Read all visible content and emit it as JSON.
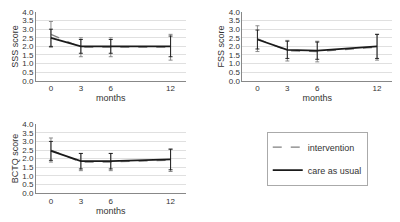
{
  "chart_data": [
    {
      "type": "line",
      "xlabel": "months",
      "ylabel": "SSS score",
      "x": [
        0,
        3,
        6,
        12
      ],
      "series": [
        {
          "name": "intervention",
          "color": "#808080",
          "line_style": "dashed",
          "values": [
            2.7,
            1.95,
            1.95,
            1.95
          ],
          "errors": [
            0.75,
            0.55,
            0.55,
            0.75
          ]
        },
        {
          "name": "care as usual",
          "color": "#1a1a1a",
          "line_style": "solid",
          "values": [
            2.5,
            2.0,
            2.0,
            2.0
          ],
          "errors": [
            0.5,
            0.4,
            0.4,
            0.6
          ]
        }
      ],
      "xlim": [
        -1.5,
        13.5
      ],
      "xticks": [
        0,
        3,
        6,
        12
      ],
      "ylim": [
        0.0,
        4.0
      ],
      "yticks": [
        {
          "value": 0.0,
          "label": "0.0"
        },
        0.5,
        {
          "value": 1.0,
          "label": "1.0"
        },
        1.5,
        {
          "value": 2.0,
          "label": "2.0"
        },
        2.5,
        {
          "value": 3.0,
          "label": "3.0"
        },
        3.5,
        {
          "value": 4.0,
          "label": "4.0"
        }
      ],
      "grid": "y",
      "legend": "lower right"
    },
    {
      "type": "line",
      "xlabel": "months",
      "ylabel": "FSS score",
      "x": [
        0,
        3,
        6,
        12
      ],
      "series": [
        {
          "name": "intervention",
          "color": "#808080",
          "line_style": "dashed",
          "values": [
            2.45,
            1.75,
            1.7,
            1.95
          ],
          "errors": [
            0.75,
            0.6,
            0.6,
            0.75
          ]
        },
        {
          "name": "care as usual",
          "color": "#1a1a1a",
          "line_style": "solid",
          "values": [
            2.4,
            1.8,
            1.75,
            2.0
          ],
          "errors": [
            0.55,
            0.5,
            0.5,
            0.7
          ]
        }
      ],
      "xlim": [
        -1.5,
        13.5
      ],
      "xticks": [
        0,
        3,
        6,
        12
      ],
      "ylim": [
        0.0,
        4.0
      ],
      "yticks": [
        {
          "value": 0.0,
          "label": "0.0"
        },
        0.5,
        {
          "value": 1.0,
          "label": "1.0"
        },
        1.5,
        {
          "value": 2.0,
          "label": "2.0"
        },
        2.5,
        {
          "value": 3.0,
          "label": "3.0"
        },
        3.5,
        {
          "value": 4.0,
          "label": "4.0"
        }
      ],
      "grid": "y",
      "legend": "lower right"
    },
    {
      "type": "line",
      "xlabel": "months",
      "ylabel": "BCTQ score",
      "x": [
        0,
        3,
        6,
        12
      ],
      "series": [
        {
          "name": "intervention",
          "color": "#808080",
          "line_style": "dashed",
          "values": [
            2.5,
            1.8,
            1.8,
            1.9
          ],
          "errors": [
            0.7,
            0.5,
            0.5,
            0.65
          ]
        },
        {
          "name": "care as usual",
          "color": "#1a1a1a",
          "line_style": "solid",
          "values": [
            2.45,
            1.85,
            1.85,
            1.95
          ],
          "errors": [
            0.55,
            0.45,
            0.45,
            0.6
          ]
        }
      ],
      "xlim": [
        -1.5,
        13.5
      ],
      "xticks": [
        0,
        3,
        6,
        12
      ],
      "ylim": [
        0.0,
        4.0
      ],
      "yticks": [
        {
          "value": 0.0,
          "label": "0.0"
        },
        0.5,
        {
          "value": 1.0,
          "label": "1.0"
        },
        1.5,
        {
          "value": 2.0,
          "label": "2.0"
        },
        2.5,
        {
          "value": 3.0,
          "label": "3.0"
        },
        3.5,
        {
          "value": 4.0,
          "label": "4.0"
        }
      ],
      "grid": "y",
      "legend": "lower right"
    }
  ]
}
